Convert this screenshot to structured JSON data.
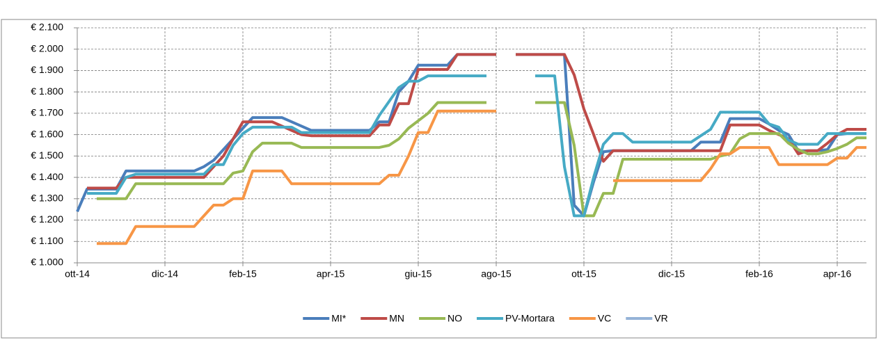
{
  "chart_data": {
    "type": "line",
    "categories": [
      "ott-14",
      null,
      null,
      null,
      null,
      null,
      null,
      null,
      null,
      "dic-14",
      null,
      null,
      null,
      null,
      null,
      null,
      null,
      "feb-15",
      null,
      null,
      null,
      null,
      null,
      null,
      null,
      null,
      "apr-15",
      null,
      null,
      null,
      null,
      null,
      null,
      null,
      null,
      "giu-15",
      null,
      null,
      null,
      null,
      null,
      null,
      null,
      "ago-15",
      null,
      null,
      null,
      null,
      null,
      null,
      null,
      null,
      "ott-15",
      null,
      null,
      null,
      null,
      null,
      null,
      null,
      null,
      "dic-15",
      null,
      null,
      null,
      null,
      null,
      null,
      null,
      null,
      "feb-16",
      null,
      null,
      null,
      null,
      null,
      null,
      null,
      "apr-16",
      null,
      null,
      null
    ],
    "series": [
      {
        "name": "MI*",
        "color": "#4a7ebb",
        "values": [
          1240,
          1345,
          1345,
          1345,
          1345,
          1430,
          1430,
          1430,
          1430,
          1430,
          1430,
          1430,
          1430,
          1450,
          1480,
          1530,
          1580,
          1630,
          1680,
          1680,
          1680,
          1680,
          1660,
          1640,
          1620,
          1620,
          1620,
          1620,
          1620,
          1620,
          1620,
          1660,
          1660,
          1800,
          1850,
          1925,
          1925,
          1925,
          1925,
          1975,
          1975,
          1975,
          1975,
          1975,
          null,
          1975,
          1975,
          1975,
          1975,
          1975,
          1975,
          1270,
          1220,
          1380,
          1520,
          1525,
          1525,
          1525,
          1525,
          1525,
          1525,
          1525,
          1525,
          1525,
          1565,
          1565,
          1565,
          1675,
          1675,
          1675,
          1675,
          1650,
          1620,
          1600,
          1525,
          1525,
          1525,
          1530,
          1600,
          1605,
          1605,
          1605
        ]
      },
      {
        "name": "MN",
        "color": "#be4b48",
        "values": [
          null,
          1350,
          1350,
          1350,
          1350,
          1400,
          1400,
          1400,
          1400,
          1400,
          1400,
          1400,
          1400,
          1400,
          1450,
          1500,
          1580,
          1660,
          1660,
          1660,
          1660,
          1640,
          1620,
          1600,
          1595,
          1595,
          1595,
          1595,
          1595,
          1595,
          1595,
          1645,
          1645,
          1745,
          1745,
          1905,
          1905,
          1905,
          1905,
          1975,
          1975,
          1975,
          1975,
          1975,
          null,
          1975,
          1975,
          1975,
          1975,
          1975,
          1975,
          1880,
          1720,
          1600,
          1475,
          1525,
          1525,
          1525,
          1525,
          1525,
          1525,
          1525,
          1525,
          1525,
          1525,
          1525,
          1525,
          1645,
          1645,
          1645,
          1645,
          1620,
          1600,
          1580,
          1510,
          1525,
          1525,
          1560,
          1600,
          1625,
          1625,
          1625
        ]
      },
      {
        "name": "NO",
        "color": "#98b954",
        "values": [
          null,
          null,
          1300,
          1300,
          1300,
          1300,
          1370,
          1370,
          1370,
          1370,
          1370,
          1370,
          1370,
          1370,
          1370,
          1370,
          1420,
          1430,
          1520,
          1560,
          1560,
          1560,
          1560,
          1540,
          1540,
          1540,
          1540,
          1540,
          1540,
          1540,
          1540,
          1540,
          1550,
          1580,
          1630,
          1665,
          1700,
          1750,
          1750,
          1750,
          1750,
          1750,
          1750,
          null,
          null,
          null,
          null,
          1750,
          1750,
          1750,
          1750,
          1550,
          1220,
          1220,
          1325,
          1325,
          1485,
          1485,
          1485,
          1485,
          1485,
          1485,
          1485,
          1485,
          1485,
          1485,
          1500,
          1510,
          1580,
          1605,
          1605,
          1605,
          1605,
          1560,
          1530,
          1510,
          1510,
          1520,
          1535,
          1555,
          1585,
          1585
        ]
      },
      {
        "name": "PV-Mortara",
        "color": "#46aac5",
        "values": [
          null,
          1325,
          1325,
          1325,
          1325,
          1400,
          1415,
          1415,
          1415,
          1415,
          1415,
          1415,
          1415,
          1415,
          1460,
          1460,
          1550,
          1605,
          1635,
          1635,
          1635,
          1635,
          1635,
          1610,
          1610,
          1610,
          1610,
          1610,
          1610,
          1610,
          1610,
          1690,
          1755,
          1820,
          1850,
          1850,
          1875,
          1875,
          1875,
          1875,
          1875,
          1875,
          1875,
          null,
          null,
          null,
          null,
          1875,
          1875,
          1875,
          1450,
          1220,
          1220,
          1400,
          1555,
          1605,
          1605,
          1565,
          1565,
          1565,
          1565,
          1565,
          1565,
          1565,
          1595,
          1625,
          1705,
          1705,
          1705,
          1705,
          1705,
          1650,
          1635,
          1575,
          1555,
          1555,
          1555,
          1605,
          1605,
          1605,
          1605,
          1605
        ]
      },
      {
        "name": "VC",
        "color": "#f79646",
        "values": [
          null,
          null,
          1090,
          1090,
          1090,
          1090,
          1170,
          1170,
          1170,
          1170,
          1170,
          1170,
          1170,
          1220,
          1270,
          1270,
          1300,
          1300,
          1430,
          1430,
          1430,
          1430,
          1370,
          1370,
          1370,
          1370,
          1370,
          1370,
          1370,
          1370,
          1370,
          1370,
          1410,
          1410,
          1500,
          1610,
          1610,
          1710,
          1710,
          1710,
          1710,
          1710,
          1710,
          1710,
          null,
          null,
          null,
          null,
          null,
          null,
          null,
          null,
          null,
          null,
          null,
          1385,
          1385,
          1385,
          1385,
          1385,
          1385,
          1385,
          1385,
          1385,
          1385,
          1440,
          1510,
          1510,
          1540,
          1540,
          1540,
          1540,
          1460,
          1460,
          1460,
          1460,
          1460,
          1460,
          1490,
          1490,
          1540,
          1540
        ]
      },
      {
        "name": "VR",
        "color": "#95b3d7",
        "values": [
          null,
          null,
          null,
          null,
          null,
          null,
          null,
          null,
          null,
          null,
          null,
          null,
          null,
          null,
          null,
          null,
          null,
          null,
          null,
          null,
          null,
          null,
          null,
          null,
          null,
          null,
          null,
          null,
          null,
          null,
          null,
          null,
          null,
          null,
          null,
          null,
          null,
          null,
          null,
          null,
          null,
          null,
          null,
          null,
          null,
          null,
          null,
          null,
          null,
          null,
          null,
          null,
          null,
          null,
          null,
          null,
          null,
          null,
          null,
          null,
          null,
          null,
          null,
          null,
          null,
          null,
          null,
          null,
          null,
          null,
          null,
          null,
          null,
          null,
          null,
          null,
          null,
          null,
          null,
          null,
          null,
          null
        ]
      }
    ],
    "ylim": [
      1000,
      2100
    ],
    "yticks": [
      {
        "value": 1000,
        "label": "€ 1.000"
      },
      {
        "value": 1100,
        "label": "€ 1.100"
      },
      {
        "value": 1200,
        "label": "€ 1.200"
      },
      {
        "value": 1300,
        "label": "€ 1.300"
      },
      {
        "value": 1400,
        "label": "€ 1.400"
      },
      {
        "value": 1500,
        "label": "€ 1.500"
      },
      {
        "value": 1600,
        "label": "€ 1.600"
      },
      {
        "value": 1700,
        "label": "€ 1.700"
      },
      {
        "value": 1800,
        "label": "€ 1.800"
      },
      {
        "value": 1900,
        "label": "€ 1.900"
      },
      {
        "value": 2000,
        "label": "€ 2.000"
      },
      {
        "value": 2100,
        "label": "€ 2.100"
      }
    ],
    "grid": true,
    "legend": "bottom"
  }
}
